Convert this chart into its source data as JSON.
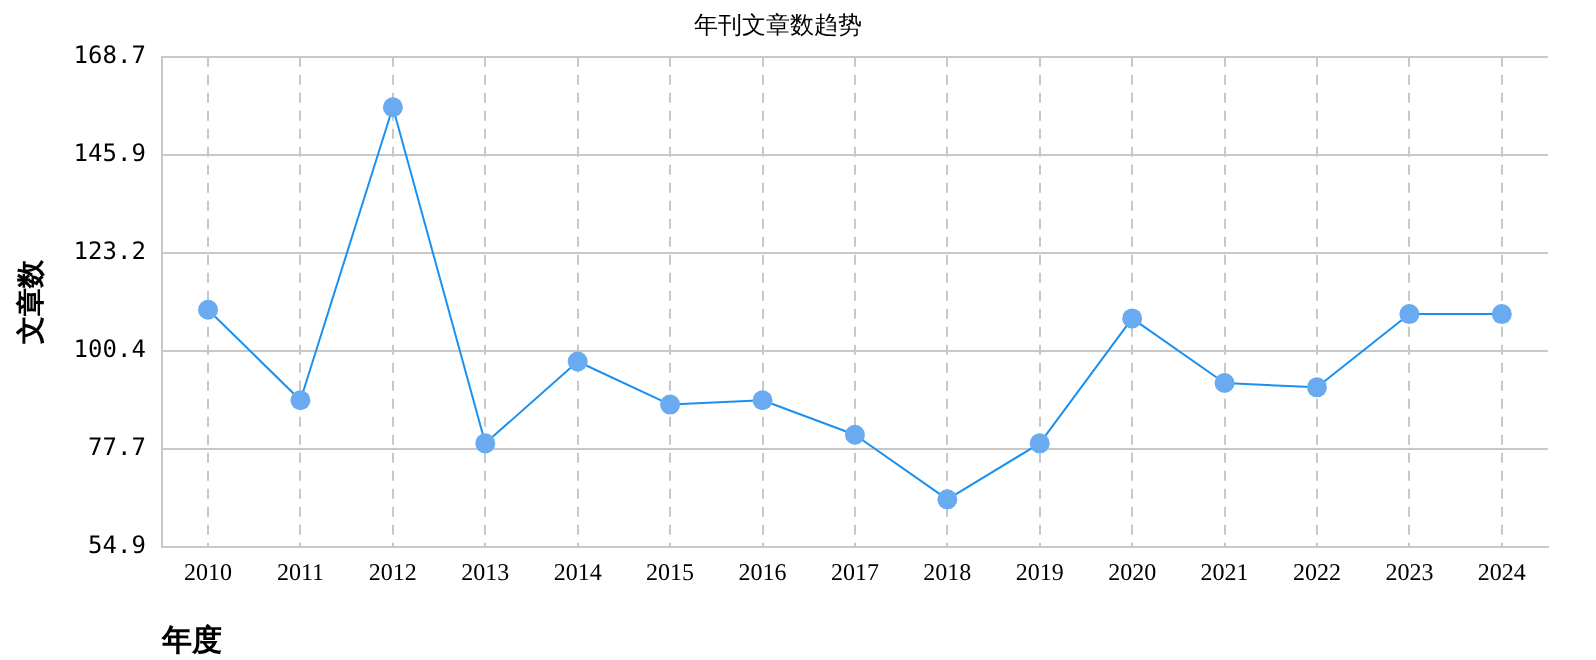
{
  "chart_data": {
    "type": "line",
    "title": "年刊文章数趋势",
    "xlabel": "年度",
    "ylabel": "文章数",
    "categories": [
      "2010",
      "2011",
      "2012",
      "2013",
      "2014",
      "2015",
      "2016",
      "2017",
      "2018",
      "2019",
      "2020",
      "2021",
      "2022",
      "2023",
      "2024"
    ],
    "series": [
      {
        "color": "#1a90f0",
        "values": [
          110,
          89,
          157,
          79,
          98,
          88,
          89,
          81,
          66,
          79,
          108,
          93,
          92,
          109,
          109
        ]
      }
    ],
    "ylim": [
      54.9,
      168.7
    ],
    "yticks": [
      54.9,
      77.7,
      100.4,
      123.2,
      145.9,
      168.7
    ],
    "grid": true,
    "legend": false,
    "marker": "circle",
    "line_style": "solid"
  }
}
